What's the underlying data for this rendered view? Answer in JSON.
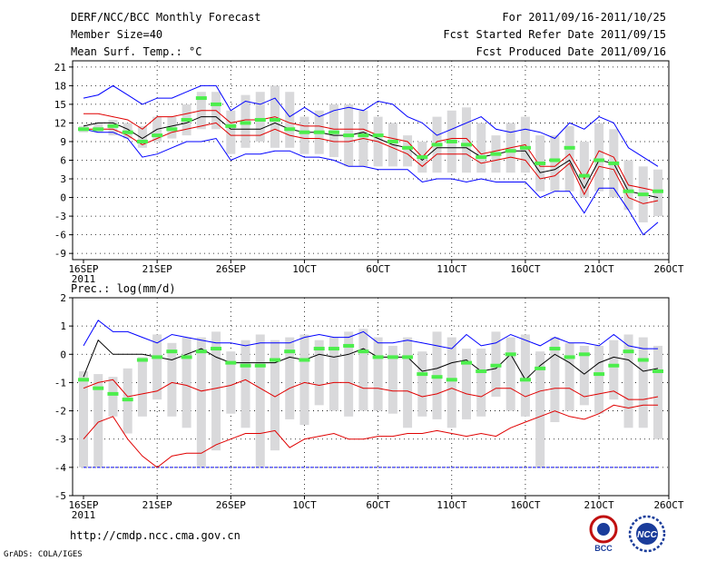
{
  "header": {
    "left": [
      "DERF/NCC/BCC Monthly Forecast",
      "Member Size=40",
      "Mean Surf. Temp.: °C"
    ],
    "right": [
      "For 2011/09/16-2011/10/25",
      "Fcst Started Refer Date 2011/09/15",
      "Fcst Produced Date 2011/09/16"
    ]
  },
  "footer": {
    "url": "http://cmdp.ncc.cma.gov.cn",
    "credit": "GrADS: COLA/IGES",
    "logo_bcc": "BCC",
    "logo_ncc": "NCC"
  },
  "colors": {
    "envelope": "#0000ff",
    "spread": "#e00000",
    "mean": "#000000",
    "box": "#d9d9db",
    "median": "#4cee4c"
  },
  "chart_data": [
    {
      "type": "line",
      "title": "Mean Surf. Temp.: °C",
      "x_ticks": [
        "16SEP",
        "21SEP",
        "26SEP",
        "1OCT",
        "6OCT",
        "11OCT",
        "16OCT",
        "21OCT",
        "26OCT"
      ],
      "x_year": "2011",
      "x_dates": [
        "09/16",
        "09/17",
        "09/18",
        "09/19",
        "09/20",
        "09/21",
        "09/22",
        "09/23",
        "09/24",
        "09/25",
        "09/26",
        "09/27",
        "09/28",
        "09/29",
        "09/30",
        "10/01",
        "10/02",
        "10/03",
        "10/04",
        "10/05",
        "10/06",
        "10/07",
        "10/08",
        "10/09",
        "10/10",
        "10/11",
        "10/12",
        "10/13",
        "10/14",
        "10/15",
        "10/16",
        "10/17",
        "10/18",
        "10/19",
        "10/20",
        "10/21",
        "10/22",
        "10/23",
        "10/24",
        "10/25"
      ],
      "ylim": [
        -10,
        22
      ],
      "y_ticks": [
        -9,
        -6,
        -3,
        0,
        3,
        6,
        9,
        12,
        15,
        18,
        21
      ],
      "series": [
        {
          "name": "max",
          "values": [
            16,
            16.5,
            18,
            16.5,
            15,
            16,
            16,
            17,
            18,
            18,
            14,
            15.5,
            15,
            16,
            13,
            14.5,
            13,
            14,
            14.5,
            14,
            15.5,
            15,
            13,
            12,
            10,
            11,
            12,
            13,
            11,
            10.5,
            11,
            10.5,
            9.5,
            12,
            11,
            13,
            12,
            8,
            6.5,
            5
          ]
        },
        {
          "name": "upper",
          "values": [
            13.5,
            13.5,
            13,
            12.5,
            11,
            13,
            13,
            13.5,
            14,
            14,
            12,
            12.5,
            12.5,
            13,
            12,
            11.5,
            11.5,
            11,
            11,
            11,
            10,
            9.5,
            9,
            6.5,
            9,
            9.5,
            9.5,
            7,
            7.5,
            8,
            8.5,
            5,
            5,
            7,
            3,
            7.5,
            6.5,
            2,
            1.5,
            1
          ]
        },
        {
          "name": "mean",
          "values": [
            11.5,
            12,
            12,
            11,
            9.5,
            11,
            11.5,
            12,
            13,
            13,
            11,
            11,
            11,
            12,
            11,
            10.5,
            10.5,
            10,
            10,
            10.5,
            9.5,
            8.5,
            8,
            6,
            8,
            8,
            8,
            6.5,
            7,
            7.5,
            7.5,
            4,
            4.5,
            6,
            1.5,
            6,
            5.5,
            1,
            0.5,
            0
          ]
        },
        {
          "name": "lower",
          "values": [
            11,
            11,
            11,
            10,
            8.5,
            9.5,
            10.5,
            11,
            11.5,
            12,
            10,
            10,
            10,
            11,
            10,
            9.5,
            9.5,
            9,
            9,
            9.5,
            9,
            8,
            7,
            5,
            7,
            7,
            7,
            5.5,
            6,
            6.5,
            6,
            3,
            3.5,
            5.5,
            0.5,
            5,
            4.5,
            0,
            -1,
            -0.5
          ]
        },
        {
          "name": "min",
          "values": [
            11,
            10.5,
            10.5,
            9.5,
            6.5,
            7,
            8,
            9,
            9,
            9.5,
            6,
            7,
            7,
            7.5,
            7.5,
            6.5,
            6.5,
            6,
            5,
            5,
            4.5,
            4.5,
            4.5,
            2.5,
            3,
            3,
            2.5,
            3,
            2.5,
            2.5,
            2.5,
            0,
            1,
            1,
            -2.5,
            1.5,
            1.5,
            -2,
            -6,
            -4
          ]
        },
        {
          "name": "box_top",
          "values": [
            11.5,
            12,
            12.5,
            12,
            11.5,
            13,
            13,
            15,
            17,
            17,
            14,
            16.5,
            17,
            18,
            17,
            13,
            14,
            15,
            15,
            14,
            13,
            12,
            10,
            9,
            13,
            14,
            14.5,
            12,
            10,
            12,
            13,
            10,
            10,
            11.5,
            9,
            12,
            11,
            6,
            5,
            4.5
          ]
        },
        {
          "name": "box_bottom",
          "values": [
            10.5,
            10.5,
            10,
            9.5,
            8,
            9,
            9.5,
            10,
            11,
            11,
            7,
            8,
            9,
            8,
            8,
            7,
            7,
            6.5,
            5,
            5,
            5,
            5,
            5,
            4,
            4,
            4,
            4,
            4,
            4,
            4,
            4,
            1,
            1,
            1,
            0,
            1,
            0,
            -2,
            -4,
            -3
          ]
        },
        {
          "name": "median",
          "values": [
            11,
            11,
            11.5,
            10.5,
            9,
            10,
            11,
            12.5,
            16,
            15,
            11.5,
            12,
            12.5,
            12.5,
            11,
            10.5,
            10.5,
            10.5,
            10,
            10,
            10,
            9,
            8,
            6.5,
            8.5,
            9,
            8.5,
            6.5,
            7,
            7.5,
            8,
            5.5,
            6,
            8,
            3.5,
            6,
            5.5,
            1,
            0.5,
            1
          ]
        }
      ]
    },
    {
      "type": "line",
      "title": "Prec.: log(mm/d)",
      "x_ticks": [
        "16SEP",
        "21SEP",
        "26SEP",
        "1OCT",
        "6OCT",
        "11OCT",
        "16OCT",
        "21OCT",
        "26OCT"
      ],
      "x_year": "2011",
      "x_dates": [
        "09/16",
        "09/17",
        "09/18",
        "09/19",
        "09/20",
        "09/21",
        "09/22",
        "09/23",
        "09/24",
        "09/25",
        "09/26",
        "09/27",
        "09/28",
        "09/29",
        "09/30",
        "10/01",
        "10/02",
        "10/03",
        "10/04",
        "10/05",
        "10/06",
        "10/07",
        "10/08",
        "10/09",
        "10/10",
        "10/11",
        "10/12",
        "10/13",
        "10/14",
        "10/15",
        "10/16",
        "10/17",
        "10/18",
        "10/19",
        "10/20",
        "10/21",
        "10/22",
        "10/23",
        "10/24",
        "10/25"
      ],
      "ylim": [
        -5,
        2
      ],
      "y_ticks": [
        -5,
        -4,
        -3,
        -2,
        -1,
        0,
        1,
        2
      ],
      "series": [
        {
          "name": "max",
          "values": [
            0.3,
            1.2,
            0.8,
            0.8,
            0.6,
            0.4,
            0.7,
            0.6,
            0.5,
            0.4,
            0.4,
            0.3,
            0.4,
            0.4,
            0.4,
            0.6,
            0.7,
            0.6,
            0.6,
            0.8,
            0.4,
            0.4,
            0.5,
            0.4,
            0.3,
            0.2,
            0.7,
            0.3,
            0.4,
            0.7,
            0.5,
            0.3,
            0.6,
            0.4,
            0.4,
            0.3,
            0.7,
            0.3,
            0.2,
            0.2
          ]
        },
        {
          "name": "p75",
          "values": [
            -0.8,
            0.5,
            0,
            0,
            0,
            -0.1,
            -0.2,
            0,
            0.2,
            -0.1,
            -0.3,
            -0.3,
            -0.3,
            -0.3,
            -0.1,
            -0.2,
            0,
            -0.1,
            0,
            0.2,
            -0.1,
            -0.1,
            -0.1,
            -0.6,
            -0.5,
            -0.3,
            -0.2,
            -0.6,
            -0.5,
            0,
            -0.9,
            -0.4,
            0,
            -0.3,
            -0.7,
            -0.3,
            -0.1,
            -0.2,
            -0.6,
            -0.5
          ]
        },
        {
          "name": "p25",
          "values": [
            -1.2,
            -1,
            -0.9,
            -1.5,
            -1.4,
            -1.3,
            -1,
            -1.1,
            -1.3,
            -1.2,
            -1.1,
            -0.9,
            -1.2,
            -1.5,
            -1.2,
            -1,
            -1.1,
            -1,
            -1,
            -1.2,
            -1.2,
            -1.3,
            -1.3,
            -1.5,
            -1.4,
            -1.2,
            -1.4,
            -1.5,
            -1.2,
            -1.2,
            -1.5,
            -1.3,
            -1.2,
            -1.2,
            -1.5,
            -1.4,
            -1.3,
            -1.6,
            -1.6,
            -1.5
          ]
        },
        {
          "name": "p10",
          "values": [
            -3,
            -2.4,
            -2.2,
            -3,
            -3.6,
            -4,
            -3.6,
            -3.5,
            -3.5,
            -3.2,
            -3,
            -2.8,
            -2.8,
            -2.7,
            -3.3,
            -3,
            -2.9,
            -2.8,
            -3,
            -3,
            -2.9,
            -2.9,
            -2.8,
            -2.8,
            -2.7,
            -2.8,
            -2.9,
            -2.8,
            -2.9,
            -2.6,
            -2.4,
            -2.2,
            -2,
            -2.2,
            -2.3,
            -2.1,
            -1.8,
            -1.9,
            -1.8,
            -1.8
          ]
        },
        {
          "name": "min",
          "values": [
            -4,
            -4,
            -4,
            -4,
            -4,
            -4,
            -4,
            -4,
            -4,
            -4,
            -4,
            -4,
            -4,
            -4,
            -4,
            -4,
            -4,
            -4,
            -4,
            -4,
            -4,
            -4,
            -4,
            -4,
            -4,
            -4,
            -4,
            -4,
            -4,
            -4,
            -4,
            -4,
            -4,
            -4,
            -4,
            -4,
            -4,
            -4,
            -4,
            -4
          ]
        },
        {
          "name": "box_top",
          "values": [
            -0.6,
            -0.7,
            -0.8,
            -0.5,
            -0.1,
            0.7,
            0.4,
            0.6,
            0.6,
            0.8,
            0.1,
            0.5,
            0.7,
            0.5,
            0.6,
            0.7,
            0.5,
            0.6,
            0.8,
            0.9,
            0.6,
            0.3,
            0.6,
            0.1,
            0.8,
            0.6,
            0.2,
            0.2,
            0.8,
            0.6,
            0.7,
            0.1,
            0.6,
            0.4,
            0.3,
            0.3,
            0.5,
            0.7,
            0.6,
            0.3
          ]
        },
        {
          "name": "box_bottom",
          "values": [
            -4,
            -4,
            -2.2,
            -2.8,
            -2.2,
            -1.6,
            -2.2,
            -2.6,
            -4,
            -3.4,
            -2.1,
            -2.6,
            -4,
            -3.4,
            -2.3,
            -2.5,
            -1.8,
            -2,
            -2.2,
            -2,
            -2,
            -2.1,
            -2.6,
            -2.2,
            -2.3,
            -2.6,
            -2.3,
            -2.2,
            -1.5,
            -2,
            -2.2,
            -4,
            -2.4,
            -2,
            -1.8,
            -2.1,
            -1.6,
            -2.6,
            -2.6,
            -3
          ]
        },
        {
          "name": "median",
          "values": [
            -0.9,
            -1.2,
            -1.4,
            -1.6,
            -0.2,
            -0.1,
            0.1,
            -0.1,
            0.1,
            0.2,
            -0.3,
            -0.4,
            -0.4,
            -0.2,
            0.1,
            -0.2,
            0.2,
            0.2,
            0.3,
            0.1,
            -0.1,
            -0.1,
            -0.1,
            -0.7,
            -0.8,
            -0.9,
            -0.3,
            -0.6,
            -0.4,
            0,
            -0.9,
            -0.5,
            0.2,
            -0.1,
            0,
            -0.7,
            -0.4,
            0.1,
            -0.2,
            -0.6
          ]
        }
      ]
    }
  ]
}
